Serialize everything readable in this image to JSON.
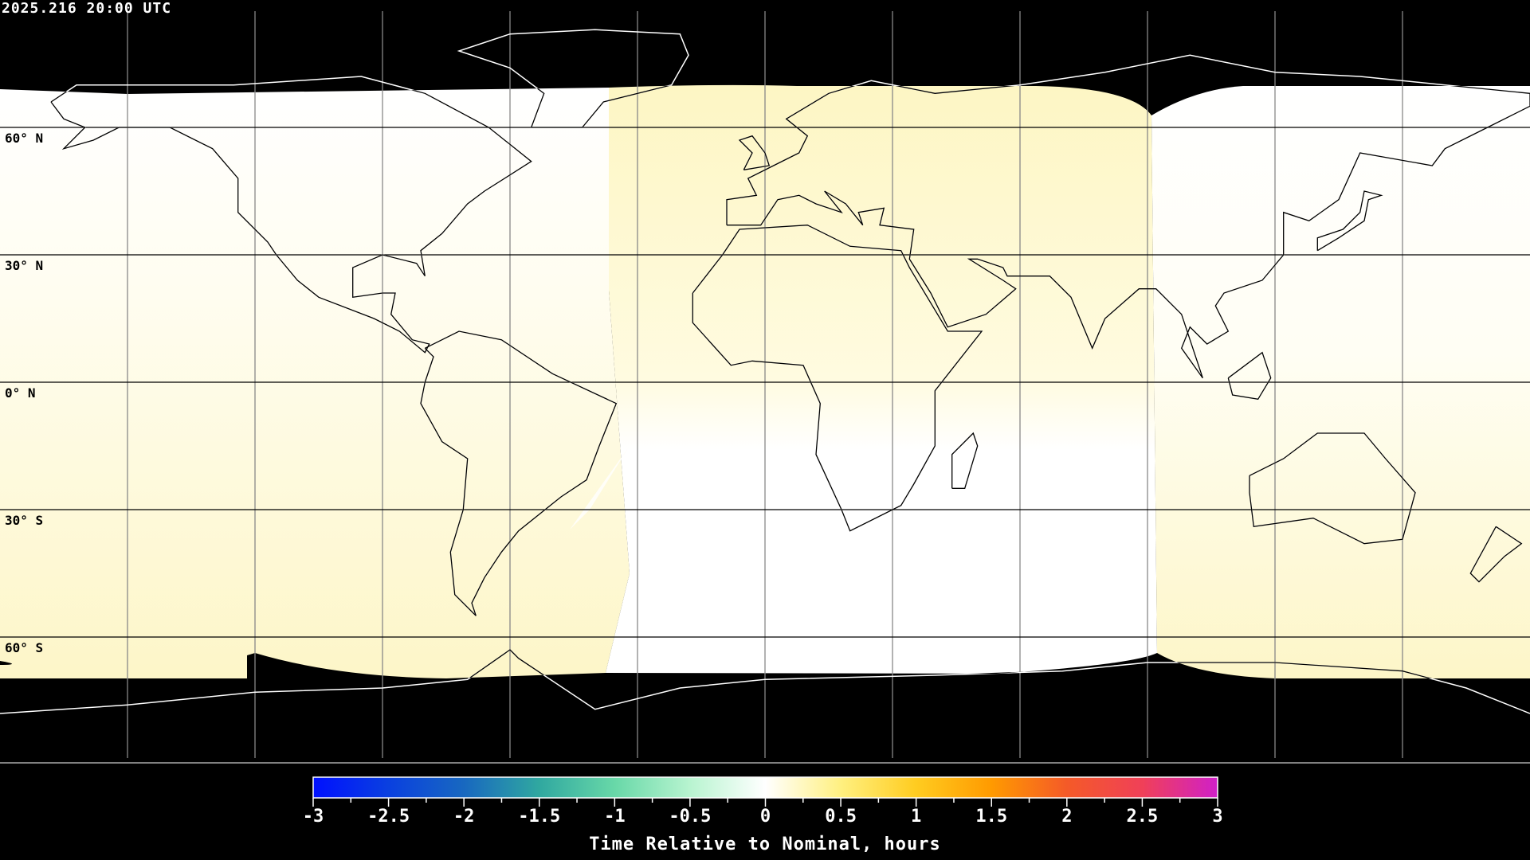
{
  "timestamp": "2025.216 20:00 UTC",
  "map": {
    "projection": "equirectangular",
    "lat_labels": [
      "60° N",
      "30° N",
      "0° N",
      "30° S",
      "60° S"
    ],
    "lat_values": [
      60,
      30,
      0,
      -30,
      -60
    ],
    "graticule_step_deg": 30,
    "colors": {
      "background": "#000000",
      "grid": "#000000",
      "coast_on_data": "#000000",
      "coast_on_nodata": "#ffffff",
      "low": "#fffef6",
      "high": "#fdf7c6"
    }
  },
  "colorbar": {
    "min": -3,
    "max": 3,
    "tick_labels": [
      "-3",
      "-2.5",
      "-2",
      "-1.5",
      "-1",
      "-0.5",
      "0",
      "0.5",
      "1",
      "1.5",
      "2",
      "2.5",
      "3"
    ],
    "title": "Time Relative to Nominal, hours",
    "stops": [
      {
        "v": -3,
        "c": "#0010ff"
      },
      {
        "v": -2.5,
        "c": "#0a40e0"
      },
      {
        "v": -2,
        "c": "#1868c0"
      },
      {
        "v": -1.5,
        "c": "#30a8a0"
      },
      {
        "v": -1,
        "c": "#68d8a8"
      },
      {
        "v": -0.5,
        "c": "#b8f4d0"
      },
      {
        "v": 0,
        "c": "#ffffff"
      },
      {
        "v": 0.5,
        "c": "#fff080"
      },
      {
        "v": 1,
        "c": "#ffcc20"
      },
      {
        "v": 1.5,
        "c": "#ff9a00"
      },
      {
        "v": 2,
        "c": "#f45a28"
      },
      {
        "v": 2.5,
        "c": "#f04058"
      },
      {
        "v": 3,
        "c": "#d020c8"
      }
    ]
  }
}
